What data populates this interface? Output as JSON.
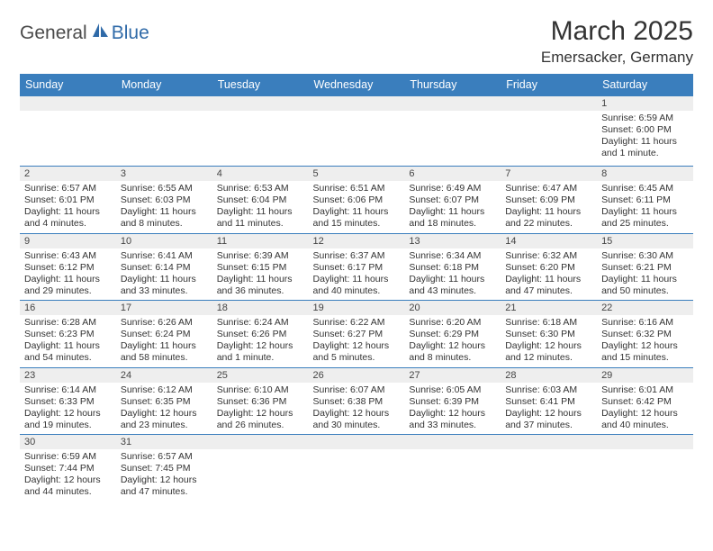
{
  "logo": {
    "text1": "General",
    "text2": "Blue"
  },
  "title": "March 2025",
  "subtitle": "Emersacker, Germany",
  "colors": {
    "header_bg": "#3a7ebd",
    "header_fg": "#ffffff",
    "daynum_bg": "#eeeeee",
    "border": "#3a7ebd",
    "text": "#333333",
    "logo_blue": "#2f6aa8",
    "logo_gray": "#4a4a4a"
  },
  "day_headers": [
    "Sunday",
    "Monday",
    "Tuesday",
    "Wednesday",
    "Thursday",
    "Friday",
    "Saturday"
  ],
  "weeks": [
    [
      null,
      null,
      null,
      null,
      null,
      null,
      {
        "n": "1",
        "sr": "Sunrise: 6:59 AM",
        "ss": "Sunset: 6:00 PM",
        "dl": "Daylight: 11 hours and 1 minute."
      }
    ],
    [
      {
        "n": "2",
        "sr": "Sunrise: 6:57 AM",
        "ss": "Sunset: 6:01 PM",
        "dl": "Daylight: 11 hours and 4 minutes."
      },
      {
        "n": "3",
        "sr": "Sunrise: 6:55 AM",
        "ss": "Sunset: 6:03 PM",
        "dl": "Daylight: 11 hours and 8 minutes."
      },
      {
        "n": "4",
        "sr": "Sunrise: 6:53 AM",
        "ss": "Sunset: 6:04 PM",
        "dl": "Daylight: 11 hours and 11 minutes."
      },
      {
        "n": "5",
        "sr": "Sunrise: 6:51 AM",
        "ss": "Sunset: 6:06 PM",
        "dl": "Daylight: 11 hours and 15 minutes."
      },
      {
        "n": "6",
        "sr": "Sunrise: 6:49 AM",
        "ss": "Sunset: 6:07 PM",
        "dl": "Daylight: 11 hours and 18 minutes."
      },
      {
        "n": "7",
        "sr": "Sunrise: 6:47 AM",
        "ss": "Sunset: 6:09 PM",
        "dl": "Daylight: 11 hours and 22 minutes."
      },
      {
        "n": "8",
        "sr": "Sunrise: 6:45 AM",
        "ss": "Sunset: 6:11 PM",
        "dl": "Daylight: 11 hours and 25 minutes."
      }
    ],
    [
      {
        "n": "9",
        "sr": "Sunrise: 6:43 AM",
        "ss": "Sunset: 6:12 PM",
        "dl": "Daylight: 11 hours and 29 minutes."
      },
      {
        "n": "10",
        "sr": "Sunrise: 6:41 AM",
        "ss": "Sunset: 6:14 PM",
        "dl": "Daylight: 11 hours and 33 minutes."
      },
      {
        "n": "11",
        "sr": "Sunrise: 6:39 AM",
        "ss": "Sunset: 6:15 PM",
        "dl": "Daylight: 11 hours and 36 minutes."
      },
      {
        "n": "12",
        "sr": "Sunrise: 6:37 AM",
        "ss": "Sunset: 6:17 PM",
        "dl": "Daylight: 11 hours and 40 minutes."
      },
      {
        "n": "13",
        "sr": "Sunrise: 6:34 AM",
        "ss": "Sunset: 6:18 PM",
        "dl": "Daylight: 11 hours and 43 minutes."
      },
      {
        "n": "14",
        "sr": "Sunrise: 6:32 AM",
        "ss": "Sunset: 6:20 PM",
        "dl": "Daylight: 11 hours and 47 minutes."
      },
      {
        "n": "15",
        "sr": "Sunrise: 6:30 AM",
        "ss": "Sunset: 6:21 PM",
        "dl": "Daylight: 11 hours and 50 minutes."
      }
    ],
    [
      {
        "n": "16",
        "sr": "Sunrise: 6:28 AM",
        "ss": "Sunset: 6:23 PM",
        "dl": "Daylight: 11 hours and 54 minutes."
      },
      {
        "n": "17",
        "sr": "Sunrise: 6:26 AM",
        "ss": "Sunset: 6:24 PM",
        "dl": "Daylight: 11 hours and 58 minutes."
      },
      {
        "n": "18",
        "sr": "Sunrise: 6:24 AM",
        "ss": "Sunset: 6:26 PM",
        "dl": "Daylight: 12 hours and 1 minute."
      },
      {
        "n": "19",
        "sr": "Sunrise: 6:22 AM",
        "ss": "Sunset: 6:27 PM",
        "dl": "Daylight: 12 hours and 5 minutes."
      },
      {
        "n": "20",
        "sr": "Sunrise: 6:20 AM",
        "ss": "Sunset: 6:29 PM",
        "dl": "Daylight: 12 hours and 8 minutes."
      },
      {
        "n": "21",
        "sr": "Sunrise: 6:18 AM",
        "ss": "Sunset: 6:30 PM",
        "dl": "Daylight: 12 hours and 12 minutes."
      },
      {
        "n": "22",
        "sr": "Sunrise: 6:16 AM",
        "ss": "Sunset: 6:32 PM",
        "dl": "Daylight: 12 hours and 15 minutes."
      }
    ],
    [
      {
        "n": "23",
        "sr": "Sunrise: 6:14 AM",
        "ss": "Sunset: 6:33 PM",
        "dl": "Daylight: 12 hours and 19 minutes."
      },
      {
        "n": "24",
        "sr": "Sunrise: 6:12 AM",
        "ss": "Sunset: 6:35 PM",
        "dl": "Daylight: 12 hours and 23 minutes."
      },
      {
        "n": "25",
        "sr": "Sunrise: 6:10 AM",
        "ss": "Sunset: 6:36 PM",
        "dl": "Daylight: 12 hours and 26 minutes."
      },
      {
        "n": "26",
        "sr": "Sunrise: 6:07 AM",
        "ss": "Sunset: 6:38 PM",
        "dl": "Daylight: 12 hours and 30 minutes."
      },
      {
        "n": "27",
        "sr": "Sunrise: 6:05 AM",
        "ss": "Sunset: 6:39 PM",
        "dl": "Daylight: 12 hours and 33 minutes."
      },
      {
        "n": "28",
        "sr": "Sunrise: 6:03 AM",
        "ss": "Sunset: 6:41 PM",
        "dl": "Daylight: 12 hours and 37 minutes."
      },
      {
        "n": "29",
        "sr": "Sunrise: 6:01 AM",
        "ss": "Sunset: 6:42 PM",
        "dl": "Daylight: 12 hours and 40 minutes."
      }
    ],
    [
      {
        "n": "30",
        "sr": "Sunrise: 6:59 AM",
        "ss": "Sunset: 7:44 PM",
        "dl": "Daylight: 12 hours and 44 minutes."
      },
      {
        "n": "31",
        "sr": "Sunrise: 6:57 AM",
        "ss": "Sunset: 7:45 PM",
        "dl": "Daylight: 12 hours and 47 minutes."
      },
      null,
      null,
      null,
      null,
      null
    ]
  ]
}
